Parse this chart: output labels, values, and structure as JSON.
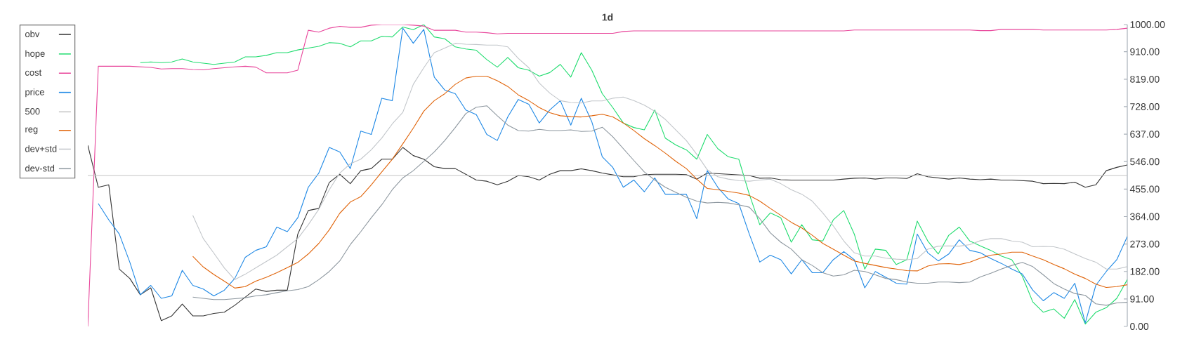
{
  "chart_data": {
    "type": "line",
    "title": "1d",
    "categories": [
      null,
      null,
      null,
      null,
      null,
      null,
      null,
      null,
      null,
      null,
      null,
      null,
      null,
      null,
      null,
      null,
      null,
      null,
      null,
      null,
      null,
      null,
      null,
      null,
      null,
      null,
      null,
      null,
      null,
      null,
      null,
      null,
      null,
      null,
      null,
      null,
      null,
      null,
      null,
      null,
      null,
      null,
      null,
      null,
      null,
      null,
      null,
      null,
      null,
      null,
      null,
      null,
      null,
      null,
      null,
      null,
      null,
      null,
      null,
      null,
      null,
      null,
      null,
      null,
      null,
      null,
      null,
      null,
      null,
      null,
      null,
      null,
      null,
      null,
      null,
      null,
      null,
      null,
      null,
      null,
      null,
      null,
      null,
      null,
      null,
      null,
      null,
      null,
      null,
      null,
      null,
      null,
      null,
      null,
      null,
      null,
      null,
      null,
      null,
      null
    ],
    "series": [
      {
        "name": "obv",
        "color": "#333333",
        "values": [
          600,
          461,
          469,
          190,
          159,
          105,
          128,
          19,
          35,
          74,
          35,
          35,
          43,
          47,
          70,
          97,
          124,
          116,
          120,
          120,
          306,
          384,
          391,
          477,
          504,
          473,
          516,
          523,
          554,
          554,
          593,
          566,
          554,
          529,
          523,
          523,
          504,
          485,
          481,
          469,
          481,
          500,
          496,
          485,
          504,
          516,
          516,
          522,
          516,
          508,
          502,
          496,
          496,
          503,
          504,
          504,
          504,
          503,
          488,
          508,
          506,
          504,
          502,
          500,
          491,
          492,
          486,
          485,
          485,
          485,
          485,
          485,
          488,
          491,
          492,
          488,
          492,
          492,
          490,
          506,
          496,
          492,
          488,
          492,
          488,
          486,
          488,
          485,
          485,
          483,
          481,
          473,
          474,
          473,
          478,
          461,
          469,
          516,
          527,
          535
        ]
      },
      {
        "name": "hope",
        "color": "#1fdc6e",
        "values": [
          null,
          null,
          null,
          null,
          null,
          874,
          876,
          874,
          876,
          886,
          876,
          872,
          868,
          872,
          876,
          893,
          893,
          898,
          907,
          907,
          916,
          922,
          928,
          940,
          938,
          926,
          946,
          946,
          961,
          959,
          992,
          983,
          1000,
          959,
          953,
          926,
          919,
          915,
          884,
          859,
          891,
          857,
          849,
          829,
          841,
          868,
          826,
          907,
          849,
          771,
          725,
          674,
          659,
          651,
          717,
          624,
          601,
          585,
          554,
          636,
          589,
          562,
          554,
          438,
          337,
          376,
          360,
          279,
          337,
          287,
          283,
          353,
          384,
          306,
          190,
          256,
          252,
          205,
          221,
          349,
          283,
          240,
          302,
          329,
          283,
          267,
          252,
          233,
          221,
          167,
          81,
          47,
          58,
          27,
          89,
          8,
          47,
          62,
          93,
          155
        ]
      },
      {
        "name": "cost",
        "color": "#e8449a",
        "values": [
          0,
          862,
          862,
          862,
          862,
          860,
          858,
          853,
          854,
          854,
          851,
          850,
          854,
          857,
          860,
          862,
          859,
          840,
          840,
          840,
          849,
          981,
          975,
          988,
          994,
          991,
          991,
          998,
          1000,
          1000,
          1000,
          998,
          995,
          981,
          981,
          981,
          975,
          975,
          973,
          969,
          971,
          971,
          971,
          971,
          971,
          971,
          971,
          971,
          971,
          971,
          971,
          977,
          979,
          979,
          979,
          979,
          979,
          979,
          979,
          979,
          979,
          979,
          979,
          979,
          979,
          979,
          979,
          979,
          979,
          979,
          979,
          979,
          979,
          982,
          982,
          982,
          982,
          982,
          982,
          982,
          982,
          982,
          982,
          982,
          982,
          980,
          980,
          984,
          984,
          984,
          984,
          982,
          982,
          982,
          982,
          982,
          982,
          982,
          984,
          988
        ]
      },
      {
        "name": "price",
        "color": "#1e88e5",
        "values": [
          null,
          407,
          353,
          306,
          213,
          105,
          136,
          93,
          101,
          186,
          136,
          124,
          101,
          120,
          159,
          229,
          252,
          264,
          329,
          314,
          360,
          461,
          508,
          593,
          578,
          523,
          647,
          636,
          756,
          748,
          988,
          938,
          984,
          826,
          783,
          771,
          717,
          702,
          636,
          616,
          694,
          752,
          736,
          674,
          717,
          748,
          667,
          756,
          678,
          562,
          527,
          461,
          485,
          446,
          492,
          438,
          438,
          438,
          357,
          516,
          461,
          422,
          407,
          306,
          213,
          236,
          221,
          174,
          221,
          178,
          178,
          221,
          248,
          221,
          128,
          182,
          163,
          143,
          140,
          306,
          244,
          217,
          240,
          287,
          252,
          244,
          225,
          209,
          190,
          174,
          120,
          85,
          112,
          93,
          143,
          12,
          136,
          182,
          221,
          298
        ]
      },
      {
        "name": "500",
        "color": "#c4c4c4",
        "values": [
          500,
          500,
          500,
          500,
          500,
          500,
          500,
          500,
          500,
          500,
          500,
          500,
          500,
          500,
          500,
          500,
          500,
          500,
          500,
          500,
          500,
          500,
          500,
          500,
          500,
          500,
          500,
          500,
          500,
          500,
          500,
          500,
          500,
          500,
          500,
          500,
          500,
          500,
          500,
          500,
          500,
          500,
          500,
          500,
          500,
          500,
          500,
          500,
          500,
          500,
          500,
          500,
          500,
          500,
          500,
          500,
          500,
          500,
          500,
          500,
          500,
          500,
          500,
          500,
          500,
          500,
          500,
          500,
          500,
          500,
          500,
          500,
          500,
          500,
          500,
          500,
          500,
          500,
          500,
          500,
          500,
          500,
          500,
          500,
          500,
          500,
          500,
          500,
          500,
          500,
          500,
          500,
          500,
          500,
          500,
          500,
          500,
          500,
          500,
          500
        ]
      },
      {
        "name": "reg",
        "color": "#e0640a",
        "values": [
          null,
          null,
          null,
          null,
          null,
          null,
          null,
          null,
          null,
          null,
          232,
          197,
          172,
          150,
          127,
          132,
          150,
          163,
          178,
          195,
          212,
          240,
          275,
          320,
          375,
          412,
          430,
          469,
          512,
          554,
          605,
          657,
          713,
          748,
          771,
          802,
          823,
          829,
          829,
          814,
          795,
          767,
          748,
          725,
          708,
          698,
          695,
          694,
          698,
          703,
          694,
          674,
          649,
          622,
          599,
          574,
          547,
          523,
          488,
          457,
          453,
          447,
          442,
          434,
          415,
          391,
          368,
          345,
          326,
          302,
          275,
          256,
          236,
          217,
          209,
          202,
          195,
          190,
          185,
          184,
          200,
          207,
          208,
          205,
          213,
          226,
          236,
          240,
          246,
          246,
          233,
          221,
          205,
          191,
          173,
          159,
          140,
          129,
          132,
          138
        ]
      },
      {
        "name": "dev+std",
        "color": "#c2c6ca",
        "values": [
          null,
          null,
          null,
          null,
          null,
          null,
          null,
          null,
          null,
          null,
          368,
          291,
          243,
          194,
          155,
          173,
          194,
          215,
          236,
          264,
          291,
          337,
          388,
          453,
          508,
          539,
          554,
          585,
          624,
          671,
          709,
          802,
          857,
          907,
          922,
          938,
          935,
          934,
          932,
          932,
          926,
          888,
          857,
          806,
          773,
          748,
          742,
          740,
          747,
          747,
          756,
          760,
          748,
          733,
          713,
          686,
          651,
          616,
          570,
          519,
          496,
          488,
          483,
          481,
          485,
          488,
          473,
          453,
          438,
          415,
          376,
          333,
          283,
          244,
          233,
          233,
          226,
          223,
          221,
          225,
          256,
          266,
          267,
          266,
          271,
          284,
          291,
          291,
          283,
          279,
          264,
          265,
          264,
          256,
          240,
          225,
          213,
          190,
          190,
          198
        ]
      },
      {
        "name": "dev-std",
        "color": "#8d979f",
        "values": [
          null,
          null,
          null,
          null,
          null,
          null,
          null,
          null,
          null,
          null,
          97,
          93,
          89,
          89,
          92,
          95,
          101,
          105,
          112,
          118,
          122,
          132,
          155,
          182,
          217,
          271,
          314,
          360,
          403,
          453,
          492,
          516,
          547,
          578,
          616,
          659,
          705,
          726,
          731,
          698,
          667,
          649,
          647,
          653,
          649,
          649,
          651,
          646,
          647,
          660,
          628,
          589,
          550,
          512,
          485,
          461,
          444,
          428,
          415,
          409,
          411,
          409,
          403,
          395,
          357,
          310,
          279,
          256,
          221,
          202,
          178,
          167,
          171,
          186,
          182,
          171,
          159,
          155,
          147,
          143,
          143,
          147,
          147,
          145,
          147,
          164,
          176,
          190,
          202,
          212,
          198,
          171,
          142,
          124,
          109,
          103,
          75,
          70,
          78,
          80
        ]
      }
    ],
    "ylim": [
      0,
      1000
    ],
    "yticks": [
      {
        "value": 0,
        "label": "0.00"
      },
      {
        "value": 91,
        "label": "91.00"
      },
      {
        "value": 182,
        "label": "182.00"
      },
      {
        "value": 273,
        "label": "273.00"
      },
      {
        "value": 364,
        "label": "364.00"
      },
      {
        "value": 455,
        "label": "455.00"
      },
      {
        "value": 546,
        "label": "546.00"
      },
      {
        "value": 637,
        "label": "637.00"
      },
      {
        "value": 728,
        "label": "728.00"
      },
      {
        "value": 819,
        "label": "819.00"
      },
      {
        "value": 910,
        "label": "910.00"
      },
      {
        "value": 1000,
        "label": "1000.00"
      }
    ],
    "tick_labels": "y",
    "legend": "top left",
    "marker": "none",
    "line_style": "solid",
    "grid": false
  }
}
